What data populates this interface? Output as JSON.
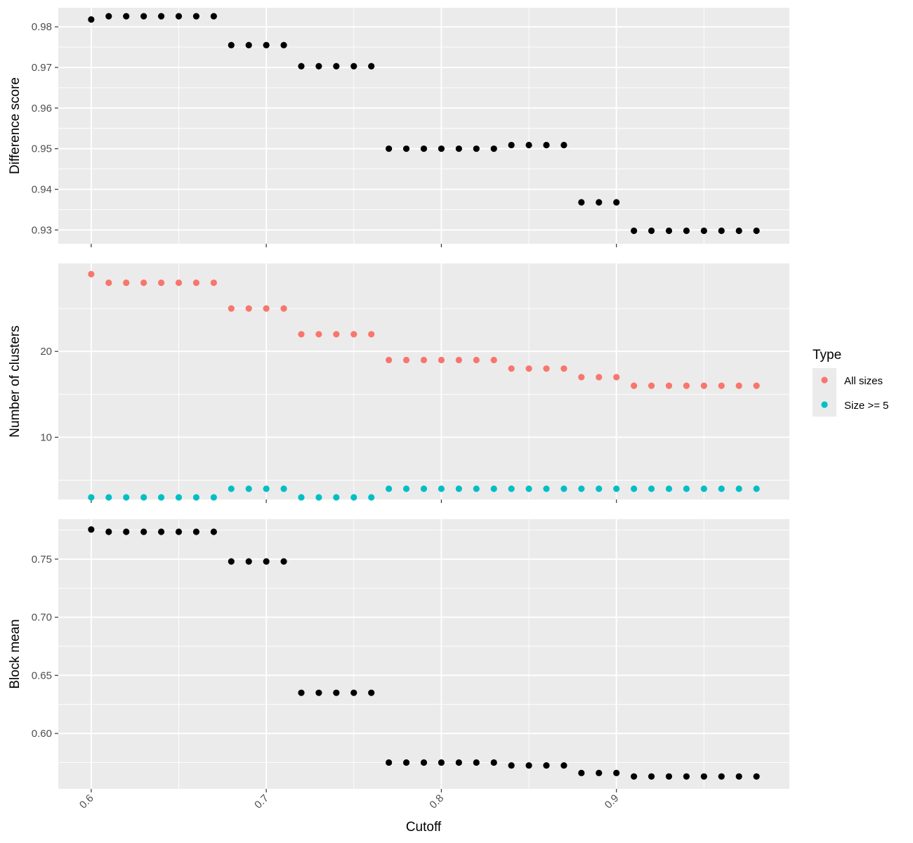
{
  "chart_data": {
    "type": "scatter",
    "xlabel": "Cutoff",
    "x_ticks": [
      0.6,
      0.7,
      0.8,
      0.9
    ],
    "x_tick_labels": [
      "0.6",
      "0.7",
      "0.8",
      "0.9"
    ],
    "xlim": [
      0.5812,
      0.9988
    ],
    "x": [
      0.6,
      0.61,
      0.62,
      0.63,
      0.64,
      0.65,
      0.66,
      0.67,
      0.68,
      0.69,
      0.7,
      0.71,
      0.72,
      0.73,
      0.74,
      0.75,
      0.76,
      0.77,
      0.78,
      0.79,
      0.8,
      0.81,
      0.82,
      0.83,
      0.84,
      0.85,
      0.86,
      0.87,
      0.88,
      0.89,
      0.9,
      0.91,
      0.92,
      0.93,
      0.94,
      0.95,
      0.96,
      0.97,
      0.98
    ],
    "grid": true,
    "legend": {
      "title": "Type",
      "placement": "right",
      "entries": [
        {
          "label": "All sizes",
          "color": "#F8766D"
        },
        {
          "label": "Size >= 5",
          "color": "#00BFC4"
        }
      ]
    },
    "panels": [
      {
        "ylabel": "Difference score",
        "ylim": [
          0.9266,
          0.9847
        ],
        "y_ticks": [
          0.93,
          0.94,
          0.95,
          0.96,
          0.97,
          0.98
        ],
        "y_tick_labels": [
          "0.93",
          "0.94",
          "0.95",
          "0.96",
          "0.97",
          "0.98"
        ],
        "series": [
          {
            "color": "#000000",
            "values": [
              0.9818,
              0.9826,
              0.9826,
              0.9826,
              0.9826,
              0.9826,
              0.9826,
              0.9826,
              0.9755,
              0.9755,
              0.9755,
              0.9755,
              0.9703,
              0.9703,
              0.9703,
              0.9703,
              0.9703,
              0.95,
              0.95,
              0.95,
              0.95,
              0.95,
              0.95,
              0.95,
              0.9509,
              0.9509,
              0.9509,
              0.9509,
              0.9368,
              0.9368,
              0.9368,
              0.9298,
              0.9298,
              0.9298,
              0.9298,
              0.9298,
              0.9298,
              0.9298,
              0.9298
            ]
          }
        ]
      },
      {
        "ylabel": "Number of clusters",
        "ylim": [
          2.75,
          30.25
        ],
        "y_ticks": [
          10,
          20
        ],
        "y_tick_labels": [
          "10",
          "20"
        ],
        "series": [
          {
            "name": "All sizes",
            "color": "#F8766D",
            "values": [
              29,
              28,
              28,
              28,
              28,
              28,
              28,
              28,
              25,
              25,
              25,
              25,
              22,
              22,
              22,
              22,
              22,
              19,
              19,
              19,
              19,
              19,
              19,
              19,
              18,
              18,
              18,
              18,
              17,
              17,
              17,
              16,
              16,
              16,
              16,
              16,
              16,
              16,
              16
            ]
          },
          {
            "name": "Size >= 5",
            "color": "#00BFC4",
            "values": [
              3,
              3,
              3,
              3,
              3,
              3,
              3,
              3,
              4,
              4,
              4,
              4,
              3,
              3,
              3,
              3,
              3,
              4,
              4,
              4,
              4,
              4,
              4,
              4,
              4,
              4,
              4,
              4,
              4,
              4,
              4,
              4,
              4,
              4,
              4,
              4,
              4,
              4,
              4
            ]
          }
        ]
      },
      {
        "ylabel": "Block mean",
        "ylim": [
          0.5523,
          0.7844
        ],
        "y_ticks": [
          0.6,
          0.65,
          0.7,
          0.75
        ],
        "y_tick_labels": [
          "0.60",
          "0.65",
          "0.70",
          "0.75"
        ],
        "series": [
          {
            "color": "#000000",
            "values": [
              0.7755,
              0.7735,
              0.7735,
              0.7735,
              0.7735,
              0.7735,
              0.7735,
              0.7735,
              0.748,
              0.748,
              0.748,
              0.748,
              0.635,
              0.635,
              0.635,
              0.635,
              0.635,
              0.575,
              0.575,
              0.575,
              0.575,
              0.575,
              0.575,
              0.575,
              0.5725,
              0.5725,
              0.5725,
              0.5725,
              0.566,
              0.566,
              0.566,
              0.563,
              0.563,
              0.563,
              0.563,
              0.563,
              0.563,
              0.563,
              0.563
            ]
          }
        ]
      }
    ]
  }
}
